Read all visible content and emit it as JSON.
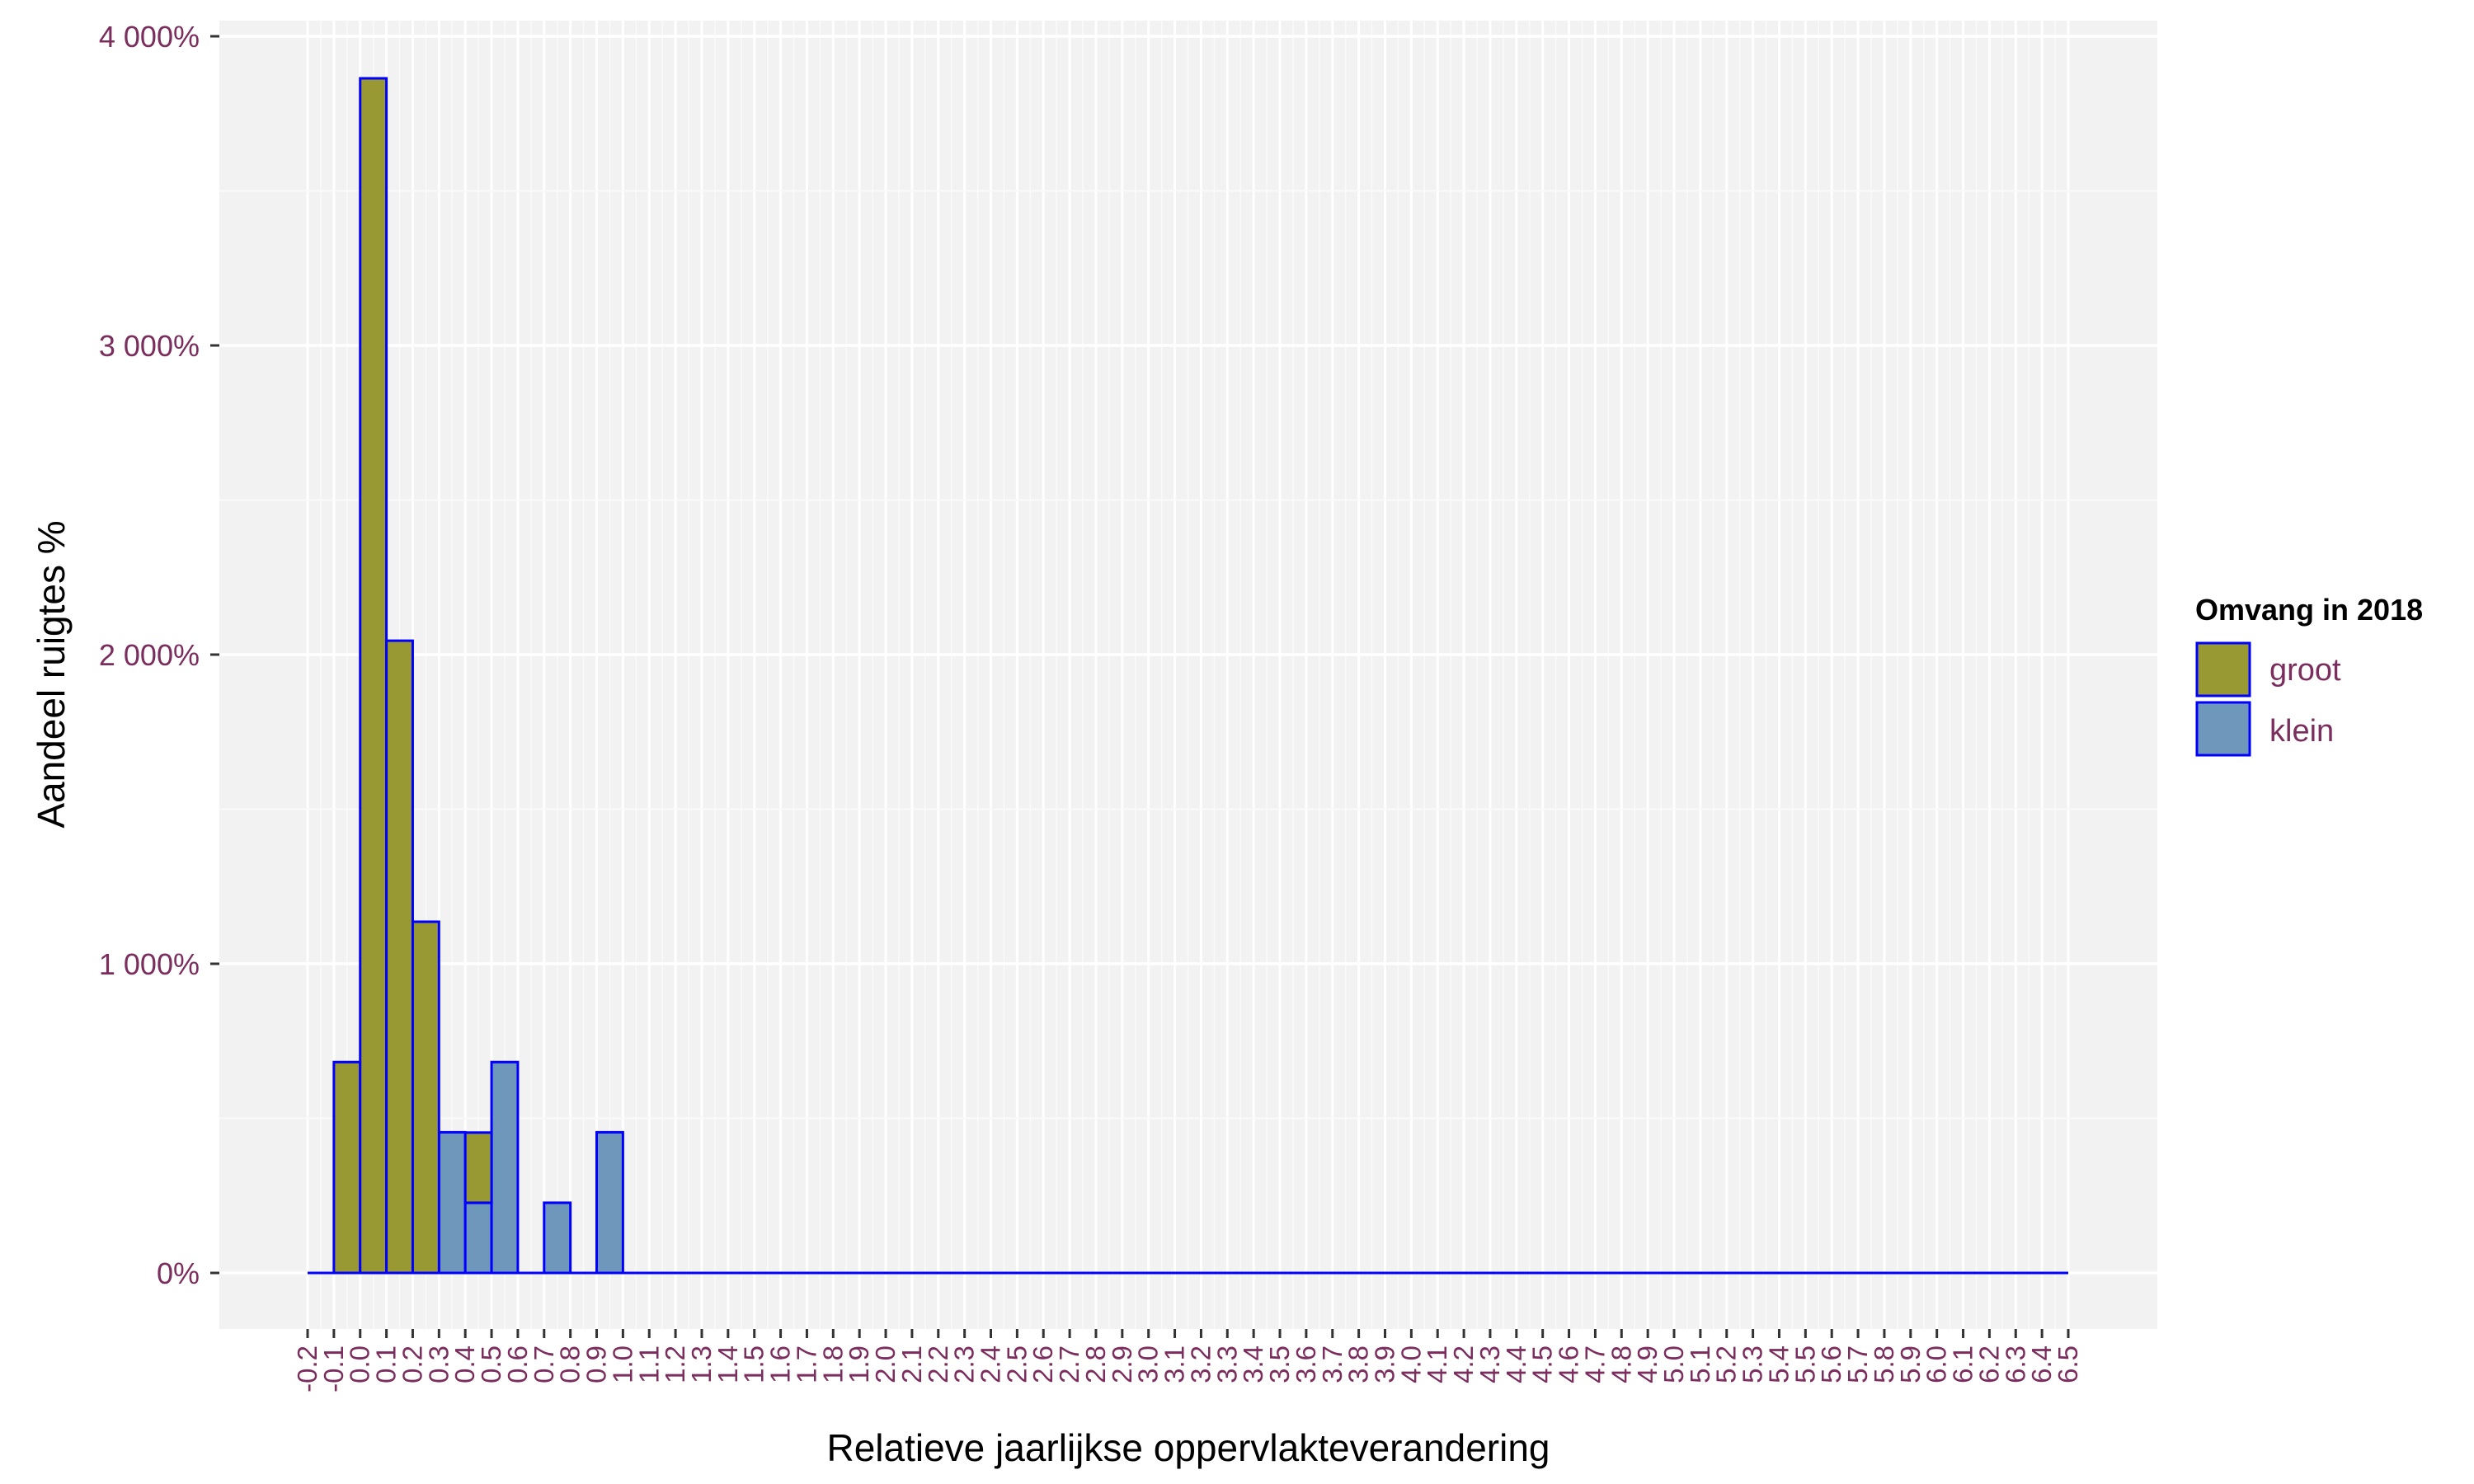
{
  "chart_data": {
    "type": "bar",
    "title": "",
    "xlabel": "Relatieve jaarlijkse oppervlakteverandering",
    "ylabel": "Aandeel ruigtes %",
    "x_range": [
      -0.2,
      6.5
    ],
    "bin_width": 0.1,
    "ylim": [
      0,
      4000
    ],
    "yticks": [
      0,
      1000,
      2000,
      3000,
      4000
    ],
    "ytick_labels": [
      "0%",
      "1 000%",
      "2 000%",
      "3 000%",
      "4 000%"
    ],
    "xtick_labels": [
      "-0.2",
      "-0.1",
      "0.0",
      "0.1",
      "0.2",
      "0.3",
      "0.4",
      "0.5",
      "0.6",
      "0.7",
      "0.8",
      "0.9",
      "1.0",
      "1.1",
      "1.2",
      "1.3",
      "1.4",
      "1.5",
      "1.6",
      "1.7",
      "1.8",
      "1.9",
      "2.0",
      "2.1",
      "2.2",
      "2.3",
      "2.4",
      "2.5",
      "2.6",
      "2.7",
      "2.8",
      "2.9",
      "3.0",
      "3.1",
      "3.2",
      "3.3",
      "3.4",
      "3.5",
      "3.6",
      "3.7",
      "3.8",
      "3.9",
      "4.0",
      "4.1",
      "4.2",
      "4.3",
      "4.4",
      "4.5",
      "4.6",
      "4.7",
      "4.8",
      "4.9",
      "5.0",
      "5.1",
      "5.2",
      "5.3",
      "5.4",
      "5.5",
      "5.6",
      "5.7",
      "5.8",
      "5.9",
      "6.0",
      "6.1",
      "6.2",
      "6.3",
      "6.4",
      "6.5"
    ],
    "grid": true,
    "legend_position": "right",
    "legend_title": "Omvang in 2018",
    "series": [
      {
        "name": "groot",
        "color": "#999933",
        "bins": [
          {
            "x0": -0.1,
            "x1": 0.0,
            "value": 682
          },
          {
            "x0": 0.0,
            "x1": 0.1,
            "value": 3864
          },
          {
            "x0": 0.1,
            "x1": 0.2,
            "value": 2045
          },
          {
            "x0": 0.2,
            "x1": 0.3,
            "value": 1136
          },
          {
            "x0": 0.4,
            "x1": 0.5,
            "value": 227
          }
        ]
      },
      {
        "name": "klein",
        "color": "#6f97bb",
        "bins": [
          {
            "x0": 0.3,
            "x1": 0.4,
            "value": 455
          },
          {
            "x0": 0.4,
            "x1": 0.5,
            "value": 227
          },
          {
            "x0": 0.5,
            "x1": 0.6,
            "value": 682
          },
          {
            "x0": 0.7,
            "x1": 0.8,
            "value": 227
          },
          {
            "x0": 0.9,
            "x1": 1.0,
            "value": 455
          }
        ]
      }
    ],
    "bar_outline_color": "#0000ff",
    "baseline_color": "#0000ff"
  }
}
